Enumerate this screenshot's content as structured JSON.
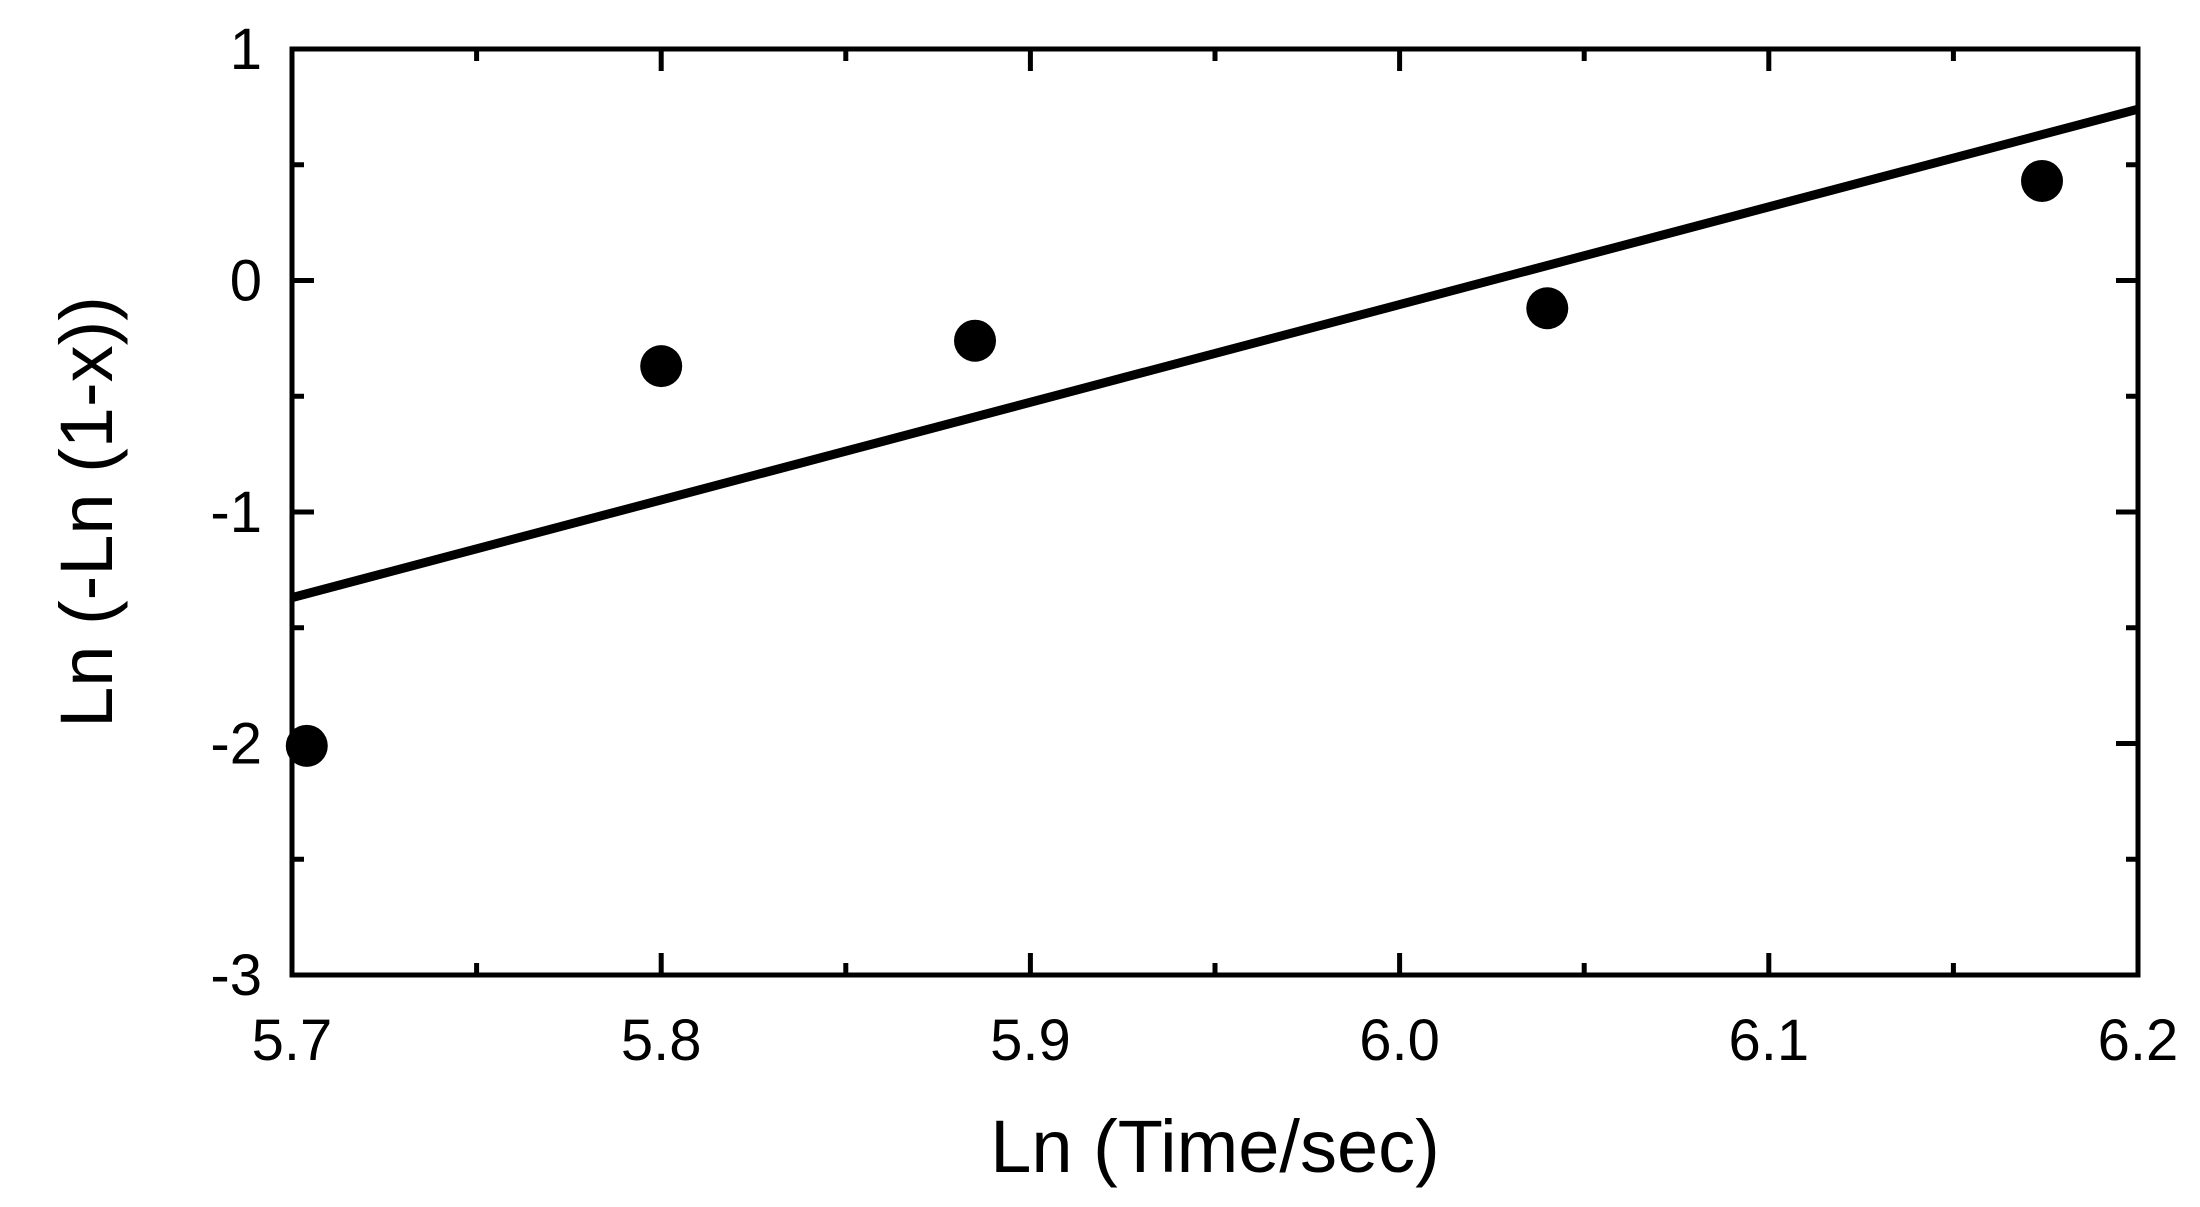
{
  "chart_data": {
    "type": "scatter",
    "title": "",
    "xlabel": "Ln (Time/sec)",
    "ylabel": "Ln (-Ln (1-x))",
    "xlim": [
      5.7,
      6.2
    ],
    "ylim": [
      -3,
      1
    ],
    "x_ticks": [
      "5.7",
      "5.8",
      "5.9",
      "6.0",
      "6.1",
      "6.2"
    ],
    "y_ticks": [
      "1",
      "0",
      "-1",
      "-2",
      "-3"
    ],
    "x_minor_step": 0.05,
    "y_minor_step": 0.5,
    "grid": false,
    "legend": "none",
    "series": [
      {
        "type": "scatter",
        "x": [
          5.704,
          5.8,
          5.885,
          6.04,
          6.174
        ],
        "y": [
          -2.01,
          -0.37,
          -0.26,
          -0.12,
          0.43
        ]
      },
      {
        "type": "line",
        "x": [
          5.7,
          6.2
        ],
        "y": [
          -1.37,
          0.74
        ]
      }
    ],
    "colors": {
      "marker": "#000000",
      "line": "#000000",
      "frame": "#000000"
    }
  }
}
